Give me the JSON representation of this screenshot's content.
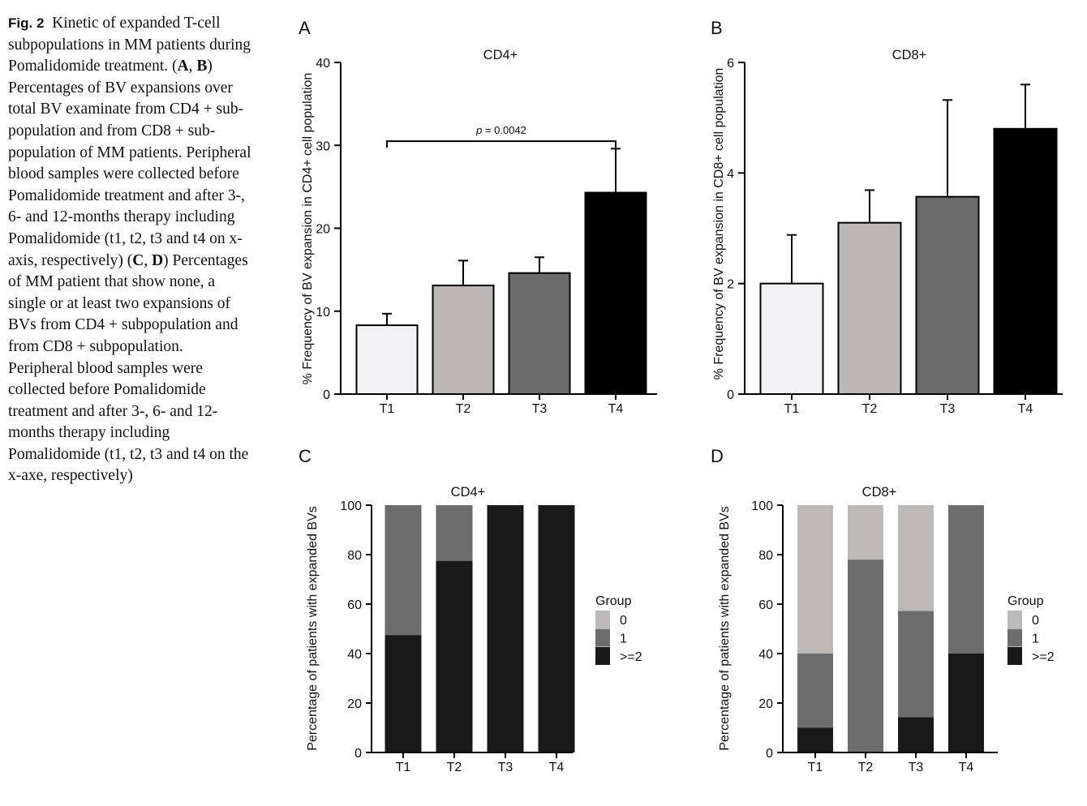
{
  "caption": {
    "fig_label": "Fig. 2",
    "parts": [
      {
        "t": "Kinetic of expanded T-cell subpopulations in MM patients during Pomalidomide treatment. ("
      },
      {
        "t": "A",
        "b": true
      },
      {
        "t": ", "
      },
      {
        "t": "B",
        "b": true
      },
      {
        "t": ") Percentages of BV expansions over total BV examinate from CD4 + sub-population and from CD8 + sub-population of MM patients. Peripheral blood samples were collected before Pomalidomide treatment and after 3-, 6- and 12-months therapy including Pomalidomide (t1, t2, t3 and t4 on x-axis, respectively) ("
      },
      {
        "t": "C",
        "b": true
      },
      {
        "t": ", "
      },
      {
        "t": "D",
        "b": true
      },
      {
        "t": ") Percentages of MM patient that show none, a single or at least two expansions of BVs from CD4 + subpopulation and from CD8 + subpopulation. Peripheral blood samples were collected before Pomalidomide treatment and after 3-, 6- and 12-months therapy including Pomalidomide (t1, t2, t3 and t4 on the x-axe, respectively)"
      }
    ]
  },
  "chart_data": [
    {
      "panel": "A",
      "type": "bar",
      "title": "CD4+",
      "ylabel": "% Frequency of BV expansion in CD4+ cell population",
      "xlabel": "",
      "categories": [
        "T1",
        "T2",
        "T3",
        "T4"
      ],
      "values": [
        8.3,
        13.1,
        14.6,
        24.3
      ],
      "errors": [
        1.4,
        3.0,
        1.9,
        5.3
      ],
      "ylim": [
        0,
        40
      ],
      "yticks": [
        0,
        10,
        20,
        30,
        40
      ],
      "colors": [
        "#f3f3f5",
        "#bcb8b5",
        "#6b6b6b",
        "#000000"
      ],
      "significance": {
        "from": 0,
        "to": 3,
        "y": 30.5,
        "p_label": "p",
        "p_value": " = 0.0042"
      }
    },
    {
      "panel": "B",
      "type": "bar",
      "title": "CD8+",
      "ylabel": "% Frequency of BV expansion in CD8+ cell population",
      "xlabel": "",
      "categories": [
        "T1",
        "T2",
        "T3",
        "T4"
      ],
      "values": [
        2.0,
        3.1,
        3.57,
        4.8
      ],
      "errors": [
        0.88,
        0.59,
        1.75,
        0.8
      ],
      "ylim": [
        0,
        6
      ],
      "yticks": [
        0,
        2,
        4,
        6
      ],
      "colors": [
        "#f3f3f5",
        "#bcb8b5",
        "#6b6b6b",
        "#000000"
      ]
    },
    {
      "panel": "C",
      "type": "bar",
      "stacked": true,
      "title": "CD4+",
      "ylabel": "Percentage of patients with expanded BVs",
      "xlabel": "",
      "categories": [
        "T1",
        "T2",
        "T3",
        "T4"
      ],
      "series": [
        {
          "name": ">=2",
          "color": "#191919",
          "values": [
            47.5,
            77.5,
            100,
            100
          ]
        },
        {
          "name": "1",
          "color": "#6d6d6d",
          "values": [
            52.5,
            22.5,
            0,
            0
          ]
        },
        {
          "name": "0",
          "color": "#bdb9b7",
          "values": [
            0,
            0,
            0,
            0
          ]
        }
      ],
      "ylim": [
        0,
        100
      ],
      "yticks": [
        0,
        20,
        40,
        60,
        80,
        100
      ],
      "legend": {
        "title": "Group",
        "position": "right",
        "order": [
          "0",
          "1",
          ">=2"
        ]
      }
    },
    {
      "panel": "D",
      "type": "bar",
      "stacked": true,
      "title": "CD8+",
      "ylabel": "Percentage of patients with expanded BVs",
      "xlabel": "",
      "categories": [
        "T1",
        "T2",
        "T3",
        "T4"
      ],
      "series": [
        {
          "name": ">=2",
          "color": "#191919",
          "values": [
            10,
            0,
            14.3,
            40
          ]
        },
        {
          "name": "1",
          "color": "#6d6d6d",
          "values": [
            30,
            78,
            42.9,
            60
          ]
        },
        {
          "name": "0",
          "color": "#bdb9b7",
          "values": [
            60,
            22,
            42.8,
            0
          ]
        }
      ],
      "ylim": [
        0,
        100
      ],
      "yticks": [
        0,
        20,
        40,
        60,
        80,
        100
      ],
      "legend": {
        "title": "Group",
        "position": "right",
        "order": [
          "0",
          "1",
          ">=2"
        ]
      }
    }
  ]
}
